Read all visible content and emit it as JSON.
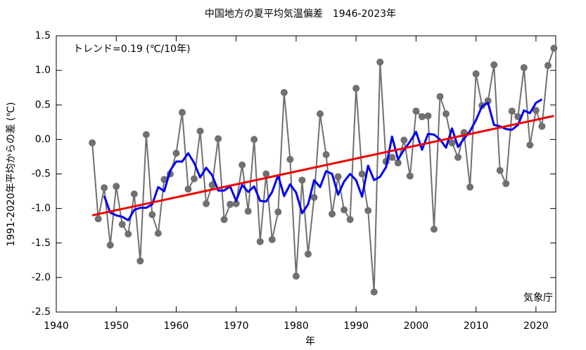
{
  "chart_data": {
    "type": "line",
    "title": "中国地方の夏平均気温偏差　1946-2023年",
    "xlabel": "年",
    "ylabel": "1991-2020年平均からの差 (℃)",
    "annotations": [
      "トレンド=0.19 (℃/10年)",
      "気象庁"
    ],
    "xlim": [
      1940,
      2023.3
    ],
    "ylim": [
      -2.5,
      1.5
    ],
    "xticks": [
      1940,
      1950,
      1960,
      1970,
      1980,
      1990,
      2000,
      2010,
      2020
    ],
    "yticks": [
      -2.5,
      {
        "value": -2.0,
        "label": "-2.0"
      },
      -1.5,
      {
        "value": -1.0,
        "label": "-1.0"
      },
      -0.5,
      {
        "value": 0.0,
        "label": "0.0"
      },
      0.5,
      {
        "value": 1.0,
        "label": "1.0"
      },
      1.5
    ],
    "series": [
      {
        "color": "#707070",
        "marker": true,
        "x": [
          1946,
          1947,
          1948,
          1949,
          1950,
          1951,
          1952,
          1953,
          1954,
          1955,
          1956,
          1957,
          1958,
          1959,
          1960,
          1961,
          1962,
          1963,
          1964,
          1965,
          1966,
          1967,
          1968,
          1969,
          1970,
          1971,
          1972,
          1973,
          1974,
          1975,
          1976,
          1977,
          1978,
          1979,
          1980,
          1981,
          1982,
          1983,
          1984,
          1985,
          1986,
          1987,
          1988,
          1989,
          1990,
          1991,
          1992,
          1993,
          1994,
          1995,
          1996,
          1997,
          1998,
          1999,
          2000,
          2001,
          2002,
          2003,
          2004,
          2005,
          2006,
          2007,
          2008,
          2009,
          2010,
          2011,
          2012,
          2013,
          2014,
          2015,
          2016,
          2017,
          2018,
          2019,
          2020,
          2021,
          2022,
          2023
        ],
        "values": [
          -0.05,
          -1.15,
          -0.7,
          -1.53,
          -0.68,
          -1.23,
          -1.37,
          -0.79,
          -1.76,
          0.07,
          -1.09,
          -1.36,
          -0.58,
          -0.5,
          -0.2,
          0.39,
          -0.72,
          -0.57,
          0.12,
          -0.93,
          -0.66,
          0.01,
          -1.16,
          -0.94,
          -0.93,
          -0.37,
          -1.04,
          0.0,
          -1.48,
          -0.5,
          -1.45,
          -1.05,
          0.68,
          -0.29,
          -1.98,
          -0.59,
          -1.66,
          -0.84,
          0.37,
          -0.22,
          -1.08,
          -0.54,
          -1.02,
          -1.16,
          0.74,
          -0.5,
          -1.03,
          -2.21,
          1.12,
          -0.32,
          -0.26,
          -0.34,
          -0.01,
          -0.53,
          0.41,
          0.33,
          0.34,
          -1.3,
          0.62,
          0.37,
          -0.05,
          -0.26,
          0.1,
          -0.69,
          0.95,
          0.49,
          0.56,
          1.08,
          -0.45,
          -0.64,
          0.41,
          0.33,
          1.04,
          -0.08,
          0.42,
          0.19,
          1.07,
          1.32
        ]
      },
      {
        "color": "#0000ee",
        "marker": false,
        "x": [
          1948,
          1949,
          1950,
          1951,
          1952,
          1953,
          1954,
          1955,
          1956,
          1957,
          1958,
          1959,
          1960,
          1961,
          1962,
          1963,
          1964,
          1965,
          1966,
          1967,
          1968,
          1969,
          1970,
          1971,
          1972,
          1973,
          1974,
          1975,
          1976,
          1977,
          1978,
          1979,
          1980,
          1981,
          1982,
          1983,
          1984,
          1985,
          1986,
          1987,
          1988,
          1989,
          1990,
          1991,
          1992,
          1993,
          1994,
          1995,
          1996,
          1997,
          1998,
          1999,
          2000,
          2001,
          2002,
          2003,
          2004,
          2005,
          2006,
          2007,
          2008,
          2009,
          2010,
          2011,
          2012,
          2013,
          2014,
          2015,
          2016,
          2017,
          2018,
          2019,
          2020,
          2021
        ],
        "values": [
          -0.82,
          -1.06,
          -1.1,
          -1.12,
          -1.17,
          -1.02,
          -0.99,
          -0.99,
          -0.94,
          -0.69,
          -0.75,
          -0.45,
          -0.32,
          -0.32,
          -0.2,
          -0.34,
          -0.55,
          -0.41,
          -0.52,
          -0.74,
          -0.74,
          -0.68,
          -0.89,
          -0.66,
          -0.76,
          -0.68,
          -0.89,
          -0.9,
          -0.76,
          -0.52,
          -0.82,
          -0.65,
          -0.77,
          -1.07,
          -0.94,
          -0.59,
          -0.69,
          -0.46,
          -0.5,
          -0.8,
          -0.61,
          -0.5,
          -0.59,
          -0.83,
          -0.38,
          -0.59,
          -0.54,
          -0.4,
          0.04,
          -0.29,
          -0.15,
          -0.03,
          0.11,
          -0.15,
          0.08,
          0.07,
          0.0,
          -0.12,
          0.16,
          -0.11,
          0.01,
          0.12,
          0.28,
          0.48,
          0.53,
          0.21,
          0.19,
          0.15,
          0.14,
          0.21,
          0.42,
          0.38,
          0.53,
          0.58
        ]
      },
      {
        "color": "#ee0000",
        "marker": false,
        "x": [
          1946,
          2023
        ],
        "values": [
          -1.1,
          0.34
        ]
      }
    ]
  }
}
